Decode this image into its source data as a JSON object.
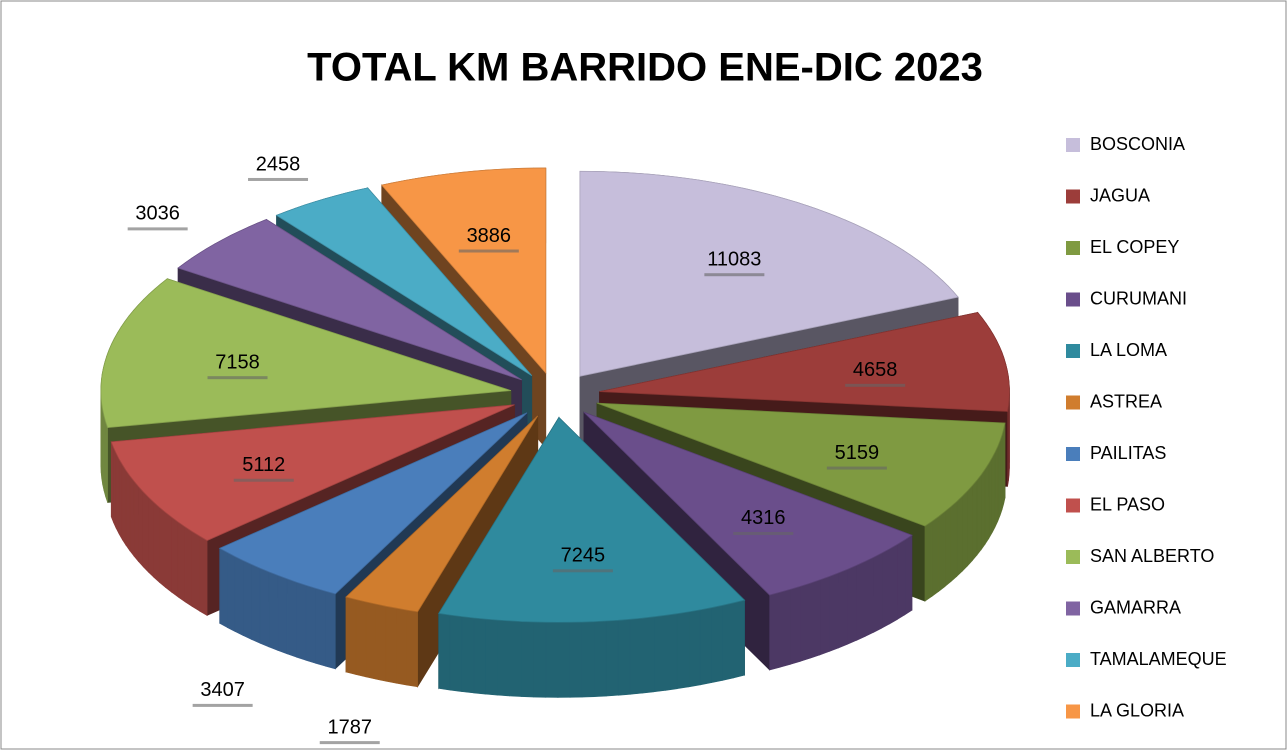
{
  "chart_data": {
    "type": "pie",
    "title": "TOTAL KM BARRIDO ENE-DIC 2023",
    "categories": [
      "BOSCONIA",
      "JAGUA",
      "EL COPEY",
      "CURUMANI",
      "LA LOMA",
      "ASTREA",
      "PAILITAS",
      "EL PASO",
      "SAN ALBERTO",
      "GAMARRA",
      "TAMALAMEQUE",
      "LA GLORIA"
    ],
    "values": [
      11083,
      4658,
      5159,
      4316,
      7245,
      1787,
      3407,
      5112,
      7158,
      3036,
      2458,
      3886
    ],
    "colors": [
      "#c6bedb",
      "#9c3d3a",
      "#7f9a41",
      "#6a4e8b",
      "#2f8a9e",
      "#d07d2e",
      "#4a7ebb",
      "#c0504d",
      "#9bbb59",
      "#8064a2",
      "#4bacc6",
      "#f79646"
    ],
    "legend": "right"
  }
}
